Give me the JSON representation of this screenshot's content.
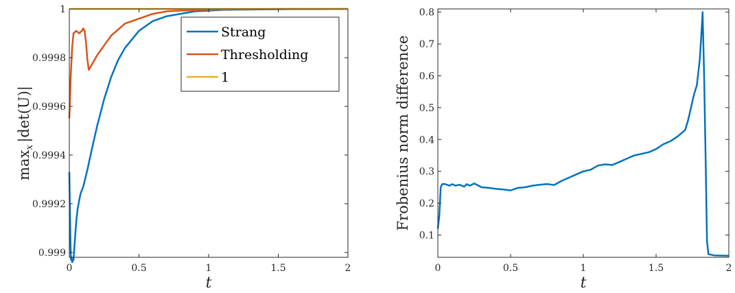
{
  "chart_data": [
    {
      "type": "line",
      "title": "",
      "xlabel": "t",
      "ylabel": "max_x |det(U)|",
      "ylabel_parts": {
        "prefix": "max",
        "sub": "x",
        "body": "|det(U)|"
      },
      "xlim": [
        0,
        2
      ],
      "ylim": [
        0.99898,
        1.0
      ],
      "xticks": [
        0,
        0.5,
        1,
        1.5,
        2
      ],
      "xtick_labels": [
        "0",
        "0.5",
        "1",
        "1.5",
        "2"
      ],
      "yticks": [
        0.999,
        0.9992,
        0.9994,
        0.9996,
        0.9998,
        1
      ],
      "ytick_labels": [
        "0.999",
        "0.9992",
        "0.9994",
        "0.9996",
        "0.9998",
        "1"
      ],
      "grid": false,
      "legend_position": "top-right",
      "series": [
        {
          "name": "Strang",
          "color": "#0072BD",
          "x": [
            0,
            0.008,
            0.012,
            0.016,
            0.02,
            0.03,
            0.04,
            0.05,
            0.06,
            0.08,
            0.1,
            0.13,
            0.16,
            0.2,
            0.25,
            0.3,
            0.35,
            0.4,
            0.5,
            0.6,
            0.7,
            0.8,
            0.9,
            1.0,
            1.1,
            1.2,
            1.4,
            1.6,
            1.8,
            2.0
          ],
          "y": [
            0.99933,
            0.99905,
            0.99897,
            0.99898,
            0.99896,
            0.99897,
            0.99905,
            0.99913,
            0.99918,
            0.99924,
            0.99927,
            0.99934,
            0.99942,
            0.99952,
            0.99963,
            0.99972,
            0.99979,
            0.99984,
            0.99991,
            0.99995,
            0.99997,
            0.99998,
            0.99999,
            0.999993,
            0.999996,
            0.999997,
            0.999998,
            0.999999,
            0.999999,
            1.0
          ]
        },
        {
          "name": "Thresholding",
          "color": "#D95319",
          "x": [
            0,
            0.005,
            0.01,
            0.02,
            0.03,
            0.05,
            0.07,
            0.09,
            0.1,
            0.11,
            0.12,
            0.13,
            0.14,
            0.15,
            0.17,
            0.2,
            0.25,
            0.3,
            0.4,
            0.5,
            0.6,
            0.7,
            0.8,
            1.0,
            1.2,
            1.5,
            1.8,
            2.0
          ],
          "y": [
            0.99955,
            0.99963,
            0.99972,
            0.99984,
            0.9999,
            0.99991,
            0.9999,
            0.99991,
            0.99992,
            0.99991,
            0.99986,
            0.99979,
            0.99975,
            0.99976,
            0.99978,
            0.99981,
            0.99985,
            0.99989,
            0.99994,
            0.99996,
            0.99998,
            0.99999,
            0.999993,
            0.999997,
            0.999999,
            1.0,
            1.0,
            1.0
          ]
        },
        {
          "name": "1",
          "color": "#EDB120",
          "x": [
            0,
            2
          ],
          "y": [
            1,
            1
          ]
        }
      ]
    },
    {
      "type": "line",
      "title": "",
      "xlabel": "t",
      "ylabel": "Frobenius norm difference",
      "xlim": [
        0,
        2
      ],
      "ylim": [
        0.03,
        0.81
      ],
      "xticks": [
        0,
        0.5,
        1,
        1.5,
        2
      ],
      "xtick_labels": [
        "0",
        "0.5",
        "1",
        "1.5",
        "2"
      ],
      "yticks": [
        0.1,
        0.2,
        0.3,
        0.4,
        0.5,
        0.6,
        0.7,
        0.8
      ],
      "ytick_labels": [
        "0.1",
        "0.2",
        "0.3",
        "0.4",
        "0.5",
        "0.6",
        "0.7",
        "0.8"
      ],
      "grid": false,
      "series": [
        {
          "color": "#0072BD",
          "x": [
            0,
            0.01,
            0.02,
            0.03,
            0.05,
            0.08,
            0.1,
            0.12,
            0.15,
            0.18,
            0.2,
            0.22,
            0.25,
            0.28,
            0.3,
            0.35,
            0.4,
            0.45,
            0.5,
            0.55,
            0.6,
            0.65,
            0.7,
            0.75,
            0.8,
            0.85,
            0.9,
            0.95,
            1.0,
            1.05,
            1.1,
            1.15,
            1.2,
            1.25,
            1.3,
            1.35,
            1.4,
            1.45,
            1.5,
            1.55,
            1.6,
            1.65,
            1.7,
            1.72,
            1.74,
            1.76,
            1.78,
            1.8,
            1.81,
            1.82,
            1.83,
            1.84,
            1.85,
            1.86,
            1.88,
            1.9,
            2.0
          ],
          "y": [
            0.12,
            0.16,
            0.25,
            0.26,
            0.26,
            0.255,
            0.26,
            0.255,
            0.258,
            0.252,
            0.26,
            0.255,
            0.262,
            0.255,
            0.25,
            0.248,
            0.245,
            0.243,
            0.24,
            0.248,
            0.25,
            0.255,
            0.258,
            0.26,
            0.257,
            0.27,
            0.28,
            0.29,
            0.3,
            0.305,
            0.318,
            0.322,
            0.32,
            0.33,
            0.34,
            0.35,
            0.355,
            0.36,
            0.37,
            0.385,
            0.395,
            0.41,
            0.43,
            0.46,
            0.5,
            0.54,
            0.57,
            0.65,
            0.72,
            0.8,
            0.6,
            0.35,
            0.08,
            0.04,
            0.038,
            0.036,
            0.035
          ]
        }
      ]
    }
  ]
}
